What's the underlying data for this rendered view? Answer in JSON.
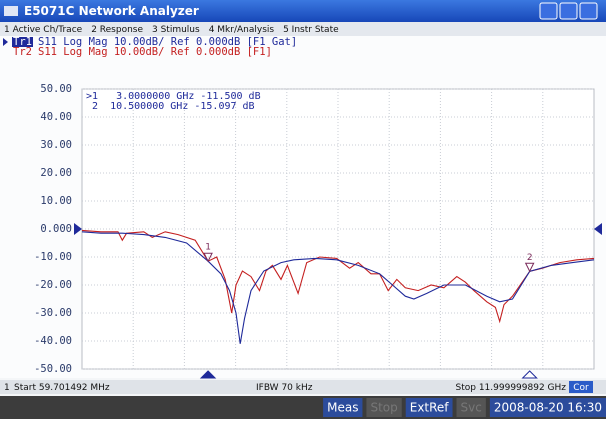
{
  "window": {
    "title": "E5071C Network Analyzer"
  },
  "menu": [
    "1 Active Ch/Trace",
    "2 Response",
    "3 Stimulus",
    "4 Mkr/Analysis",
    "5 Instr State"
  ],
  "chart_data": {
    "type": "line",
    "series": [
      {
        "name": "Tr1",
        "info": "S11 Log Mag 10.00dB/ Ref 0.000dB [F1 Gat]",
        "color": "#1f2a9a",
        "x": [
          0.0597,
          0.5,
          1,
          1.5,
          2,
          2.5,
          3,
          3.3,
          3.5,
          3.65,
          3.75,
          3.85,
          4,
          4.3,
          4.7,
          5,
          5.5,
          6,
          6.5,
          7,
          7.3,
          7.6,
          7.8,
          8.1,
          8.5,
          9,
          9.5,
          9.8,
          10.1,
          10.5,
          11,
          11.5,
          12
        ],
        "values": [
          -1,
          -1.5,
          -1.5,
          -2,
          -3,
          -5,
          -11.5,
          -16,
          -22,
          -30,
          -41,
          -32,
          -22,
          -15,
          -12,
          -11,
          -10.5,
          -11,
          -13,
          -16,
          -20,
          -24,
          -25,
          -23,
          -20,
          -20,
          -24,
          -26,
          -25,
          -15.1,
          -13,
          -12,
          -11
        ]
      },
      {
        "name": "Tr2",
        "info": "S11 Log Mag 10.00dB/ Ref 0.000dB [F1]",
        "color": "#c42020",
        "x": [
          0.0597,
          0.5,
          0.9,
          1,
          1.1,
          1.5,
          1.7,
          2,
          2.3,
          2.7,
          3,
          3.2,
          3.4,
          3.55,
          3.65,
          3.8,
          4,
          4.2,
          4.35,
          4.5,
          4.7,
          4.85,
          5.1,
          5.3,
          5.6,
          6,
          6.3,
          6.5,
          6.8,
          7,
          7.2,
          7.4,
          7.6,
          7.9,
          8.2,
          8.5,
          8.8,
          9,
          9.2,
          9.5,
          9.7,
          9.8,
          9.9,
          10.1,
          10.5,
          10.8,
          11.2,
          11.6,
          12
        ],
        "values": [
          -0.5,
          -1,
          -1,
          -4,
          -1.5,
          -1,
          -3,
          -1,
          -2,
          -4,
          -11.5,
          -10,
          -18,
          -30,
          -20,
          -15,
          -17,
          -22,
          -15,
          -13,
          -18,
          -13,
          -23,
          -12,
          -10,
          -10.5,
          -14,
          -12,
          -16,
          -16,
          -22,
          -18,
          -21,
          -22,
          -20,
          -21,
          -17,
          -19,
          -22,
          -26,
          -28,
          -33,
          -27,
          -24,
          -15.1,
          -14,
          -12,
          -11,
          -10.5
        ]
      }
    ],
    "xlim": [
      0.059701492,
      11.999999892
    ],
    "ylim": [
      -50,
      50
    ],
    "yticks": [
      {
        "value": 50,
        "label": "50.00"
      },
      {
        "value": 40,
        "label": "40.00"
      },
      {
        "value": 30,
        "label": "30.00"
      },
      {
        "value": 20,
        "label": "20.00"
      },
      {
        "value": 10,
        "label": "10.00"
      },
      {
        "value": 0,
        "label": "0.000"
      },
      {
        "value": -10,
        "label": "-10.00"
      },
      {
        "value": -20,
        "label": "-20.00"
      },
      {
        "value": -30,
        "label": "-30.00"
      },
      {
        "value": -40,
        "label": "-40.00"
      },
      {
        "value": -50,
        "label": "-50.00"
      }
    ],
    "grid": true,
    "markers": [
      {
        "label": "1",
        "x": 3,
        "value": -11.5
      },
      {
        "label": "2",
        "x": 10.5,
        "value": -15.097
      }
    ],
    "marker_readout": [
      ">1   3.0000000 GHz -11.500 dB",
      " 2  10.500000 GHz -15.097 dB"
    ]
  },
  "status": {
    "channel": "1",
    "start": "Start 59.701492 MHz",
    "ifbw": "IFBW 70 kHz",
    "stop": "Stop 11.999999892 GHz",
    "cor": "Cor"
  },
  "taskbar": [
    "Meas",
    "Stop",
    "ExtRef",
    "Svc",
    "2008-08-20 16:30"
  ]
}
